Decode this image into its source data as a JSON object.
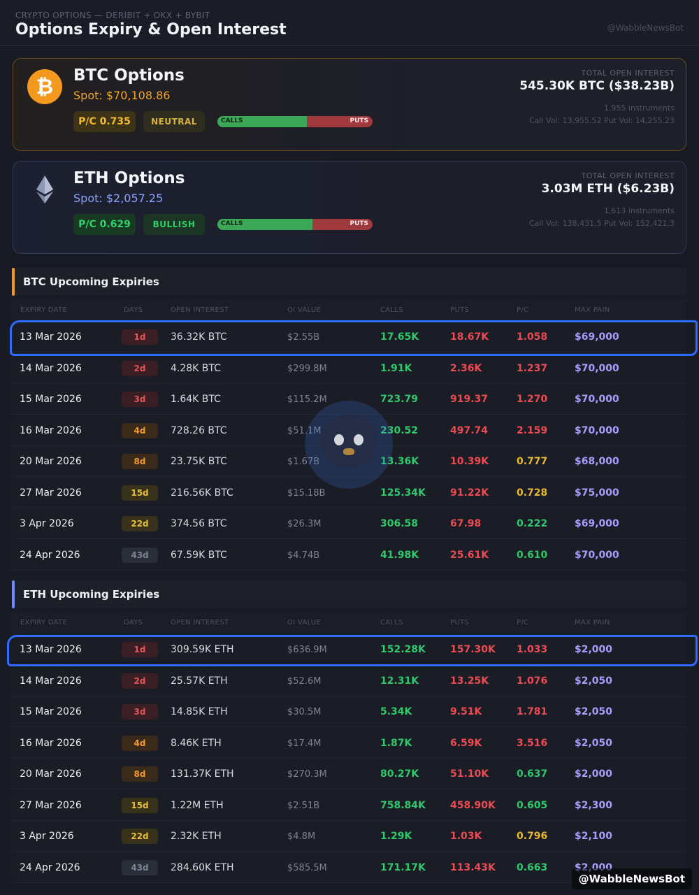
{
  "header": {
    "eyebrow": "CRYPTO OPTIONS — DERIBIT + OKX + BYBIT",
    "title": "Options Expiry & Open Interest",
    "handle": "@WabbleNewsBot"
  },
  "btc_card": {
    "logo_symbol": "₿",
    "name": "BTC Options",
    "spot": "Spot: $70,108.86",
    "pc": "P/C 0.735",
    "sentiment": "NEUTRAL",
    "calls_label": "CALLS",
    "puts_label": "PUTS",
    "calls_fraction": 0.576,
    "oi_label": "TOTAL OPEN INTEREST",
    "oi_value": "545.30K BTC ($38.23B)",
    "instruments": "1,955 instruments",
    "vols": "Call Vol: 13,955.52 Put Vol: 14,255.23"
  },
  "eth_card": {
    "logo_icon": "ethereum-icon",
    "name": "ETH Options",
    "spot": "Spot: $2,057.25",
    "pc": "P/C 0.629",
    "sentiment": "BULLISH",
    "calls_label": "CALLS",
    "puts_label": "PUTS",
    "calls_fraction": 0.614,
    "oi_label": "TOTAL OPEN INTEREST",
    "oi_value": "3.03M ETH ($6.23B)",
    "instruments": "1,613 instruments",
    "vols": "Call Vol: 138,431.5 Put Vol: 152,421.3"
  },
  "columns": {
    "expiry": "EXPIRY DATE",
    "days": "DAYS",
    "oi": "OPEN INTEREST",
    "value": "OI VALUE",
    "calls": "CALLS",
    "puts": "PUTS",
    "pc": "P/C",
    "pain": "MAX PAIN"
  },
  "btc_section": {
    "title": "BTC Upcoming Expiries",
    "rows": [
      {
        "date": "13 Mar 2026",
        "days": "1d",
        "days_tone": "red",
        "oi": "36.32K BTC",
        "value": "$2.55B",
        "calls": "17.65K",
        "puts": "18.67K",
        "pc": "1.058",
        "pc_tone": "red",
        "pain": "$69,000"
      },
      {
        "date": "14 Mar 2026",
        "days": "2d",
        "days_tone": "red",
        "oi": "4.28K BTC",
        "value": "$299.8M",
        "calls": "1.91K",
        "puts": "2.36K",
        "pc": "1.237",
        "pc_tone": "red",
        "pain": "$70,000"
      },
      {
        "date": "15 Mar 2026",
        "days": "3d",
        "days_tone": "red",
        "oi": "1.64K BTC",
        "value": "$115.2M",
        "calls": "723.79",
        "puts": "919.37",
        "pc": "1.270",
        "pc_tone": "red",
        "pain": "$70,000"
      },
      {
        "date": "16 Mar 2026",
        "days": "4d",
        "days_tone": "orange",
        "oi": "728.26 BTC",
        "value": "$51.1M",
        "calls": "230.52",
        "puts": "497.74",
        "pc": "2.159",
        "pc_tone": "red",
        "pain": "$70,000"
      },
      {
        "date": "20 Mar 2026",
        "days": "8d",
        "days_tone": "orange",
        "oi": "23.75K BTC",
        "value": "$1.67B",
        "calls": "13.36K",
        "puts": "10.39K",
        "pc": "0.777",
        "pc_tone": "gold",
        "pain": "$68,000"
      },
      {
        "date": "27 Mar 2026",
        "days": "15d",
        "days_tone": "gold",
        "oi": "216.56K BTC",
        "value": "$15.18B",
        "calls": "125.34K",
        "puts": "91.22K",
        "pc": "0.728",
        "pc_tone": "gold",
        "pain": "$75,000"
      },
      {
        "date": "3 Apr 2026",
        "days": "22d",
        "days_tone": "gold",
        "oi": "374.56 BTC",
        "value": "$26.3M",
        "calls": "306.58",
        "puts": "67.98",
        "pc": "0.222",
        "pc_tone": "green",
        "pain": "$69,000"
      },
      {
        "date": "24 Apr 2026",
        "days": "43d",
        "days_tone": "grey",
        "oi": "67.59K BTC",
        "value": "$4.74B",
        "calls": "41.98K",
        "puts": "25.61K",
        "pc": "0.610",
        "pc_tone": "green",
        "pain": "$70,000"
      }
    ]
  },
  "eth_section": {
    "title": "ETH Upcoming Expiries",
    "rows": [
      {
        "date": "13 Mar 2026",
        "days": "1d",
        "days_tone": "red",
        "oi": "309.59K ETH",
        "value": "$636.9M",
        "calls": "152.28K",
        "puts": "157.30K",
        "pc": "1.033",
        "pc_tone": "red",
        "pain": "$2,000"
      },
      {
        "date": "14 Mar 2026",
        "days": "2d",
        "days_tone": "red",
        "oi": "25.57K ETH",
        "value": "$52.6M",
        "calls": "12.31K",
        "puts": "13.25K",
        "pc": "1.076",
        "pc_tone": "red",
        "pain": "$2,050"
      },
      {
        "date": "15 Mar 2026",
        "days": "3d",
        "days_tone": "red",
        "oi": "14.85K ETH",
        "value": "$30.5M",
        "calls": "5.34K",
        "puts": "9.51K",
        "pc": "1.781",
        "pc_tone": "red",
        "pain": "$2,050"
      },
      {
        "date": "16 Mar 2026",
        "days": "4d",
        "days_tone": "orange",
        "oi": "8.46K ETH",
        "value": "$17.4M",
        "calls": "1.87K",
        "puts": "6.59K",
        "pc": "3.516",
        "pc_tone": "red",
        "pain": "$2,050"
      },
      {
        "date": "20 Mar 2026",
        "days": "8d",
        "days_tone": "orange",
        "oi": "131.37K ETH",
        "value": "$270.3M",
        "calls": "80.27K",
        "puts": "51.10K",
        "pc": "0.637",
        "pc_tone": "green",
        "pain": "$2,000"
      },
      {
        "date": "27 Mar 2026",
        "days": "15d",
        "days_tone": "gold",
        "oi": "1.22M ETH",
        "value": "$2.51B",
        "calls": "758.84K",
        "puts": "458.90K",
        "pc": "0.605",
        "pc_tone": "green",
        "pain": "$2,300"
      },
      {
        "date": "3 Apr 2026",
        "days": "22d",
        "days_tone": "gold",
        "oi": "2.32K ETH",
        "value": "$4.8M",
        "calls": "1.29K",
        "puts": "1.03K",
        "pc": "0.796",
        "pc_tone": "gold",
        "pain": "$2,100"
      },
      {
        "date": "24 Apr 2026",
        "days": "43d",
        "days_tone": "grey",
        "oi": "284.60K ETH",
        "value": "$585.5M",
        "calls": "171.17K",
        "puts": "113.43K",
        "pc": "0.663",
        "pc_tone": "green",
        "pain": "$2,000"
      }
    ]
  },
  "footer": {
    "handle": "@WabbleNewsBot"
  },
  "colors": {
    "btc_accent": "#f39a1e",
    "eth_accent": "#6f88ff",
    "calls_green": "#2fc86a",
    "puts_red": "#ec4b52",
    "max_pain_purple": "#a99cff",
    "highlight_blue": "#2f6bff"
  }
}
